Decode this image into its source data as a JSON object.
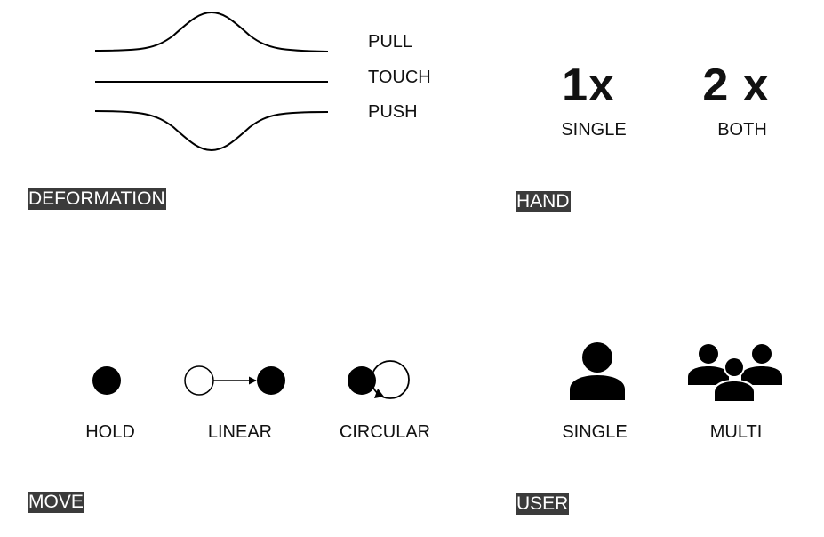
{
  "deformation": {
    "tag": "DEFORMATION",
    "pull_label": "PULL",
    "touch_label": "TOUCH",
    "push_label": "PUSH"
  },
  "hand": {
    "tag": "HAND",
    "single_count": "1x",
    "single_label": "SINGLE",
    "both_count": "2 x",
    "both_label": "BOTH"
  },
  "move": {
    "tag": "MOVE",
    "hold_label": "HOLD",
    "linear_label": "LINEAR",
    "circular_label": "CIRCULAR"
  },
  "user": {
    "tag": "USER",
    "single_label": "SINGLE",
    "multi_label": "MULTI"
  },
  "icons": {
    "single_user": "person-icon",
    "multi_user": "group-icon"
  },
  "colors": {
    "tag_background": "#3b3b3b",
    "tag_text": "#ffffff",
    "ink": "#000000"
  }
}
